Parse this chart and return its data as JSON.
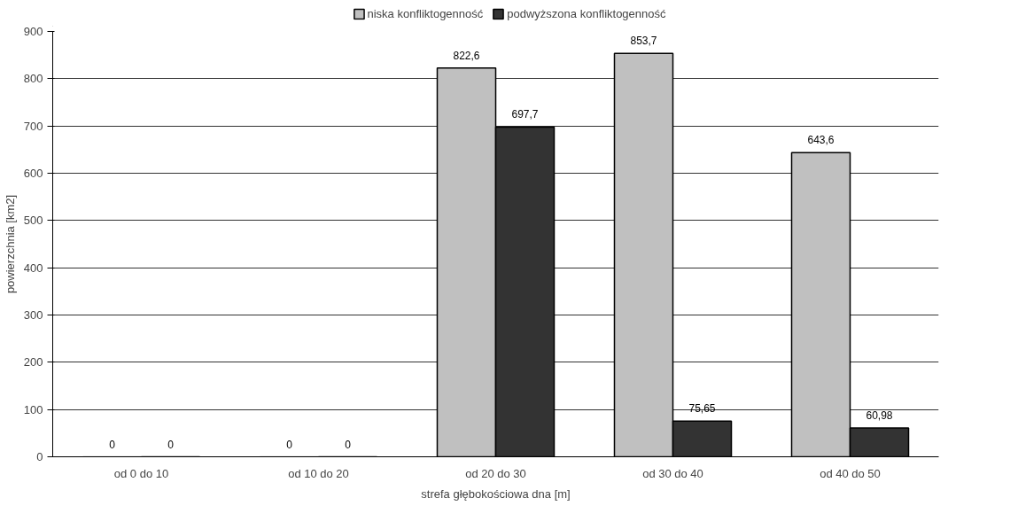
{
  "chart_data": {
    "type": "bar",
    "xlabel": "strefa głębokościowa dna [m]",
    "ylabel": "powierzchnia [km2]",
    "categories": [
      "od 0 do 10",
      "od 10 do 20",
      "od 20 do 30",
      "od 30 do 40",
      "od 40 do 50"
    ],
    "series": [
      {
        "name": "niska konfliktogenność",
        "color": "#c0c0c0",
        "values": [
          0,
          0,
          822.6,
          853.7,
          643.6
        ],
        "value_labels": [
          "0",
          "0",
          "822,6",
          "853,7",
          "643,6"
        ]
      },
      {
        "name": "podwyższona konfliktogenność",
        "color": "#333333",
        "values": [
          0,
          0,
          697.7,
          75.65,
          60.98
        ],
        "value_labels": [
          "0",
          "0",
          "697,7",
          "75,65",
          "60,98"
        ]
      }
    ],
    "ylim": [
      0,
      900
    ],
    "yticks": [
      0,
      100,
      200,
      300,
      400,
      500,
      600,
      700,
      800,
      900
    ],
    "grid": "y",
    "legend": "top"
  }
}
